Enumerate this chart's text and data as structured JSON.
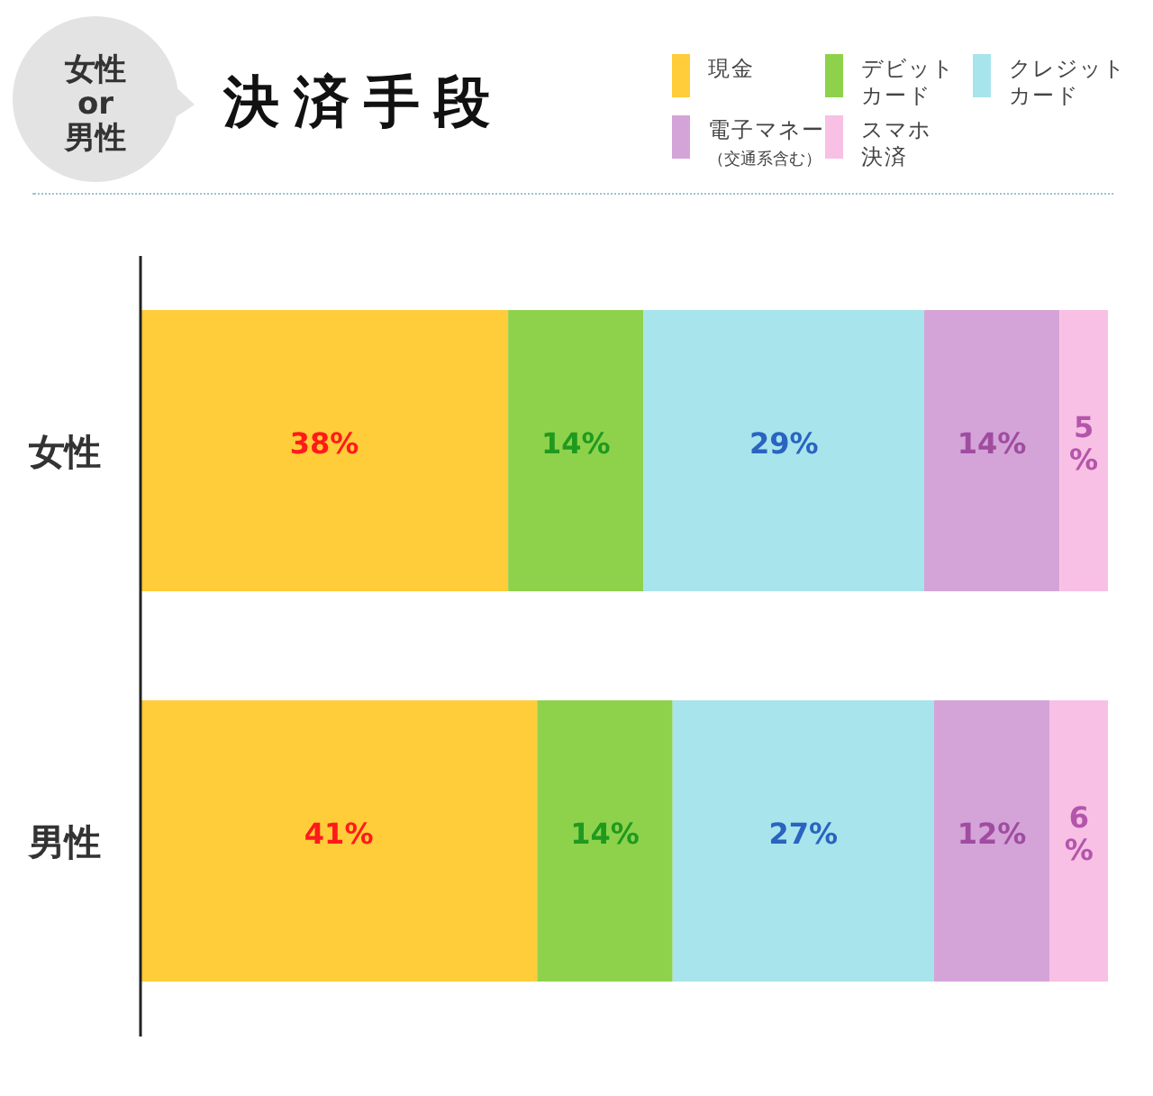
{
  "chart_data": {
    "type": "bar",
    "orientation": "horizontal",
    "stacked": true,
    "title": "決済手段",
    "annotations": [
      "女性\nor\n男性"
    ],
    "categories": [
      "女性",
      "男性"
    ],
    "series": [
      {
        "name": "現金",
        "color": "#ffcc3a",
        "values": [
          38,
          41
        ],
        "value_labels": [
          "38%",
          "41%"
        ]
      },
      {
        "name": "デビットカード",
        "color": "#8ed24c",
        "values": [
          14,
          14
        ],
        "value_labels": [
          "14%",
          "14%"
        ]
      },
      {
        "name": "クレジットカード",
        "color": "#a8e4ec",
        "values": [
          29,
          27
        ],
        "value_labels": [
          "29%",
          "27%"
        ]
      },
      {
        "name": "電子マネー（交通系含む）",
        "color": "#d4a4d8",
        "values": [
          14,
          12
        ],
        "value_labels": [
          "14%",
          "12%"
        ]
      },
      {
        "name": "スマホ決済",
        "color": "#f8c0e4",
        "values": [
          5,
          6
        ],
        "value_labels": [
          "5%",
          "6%"
        ]
      }
    ],
    "legend": "top right"
  }
}
